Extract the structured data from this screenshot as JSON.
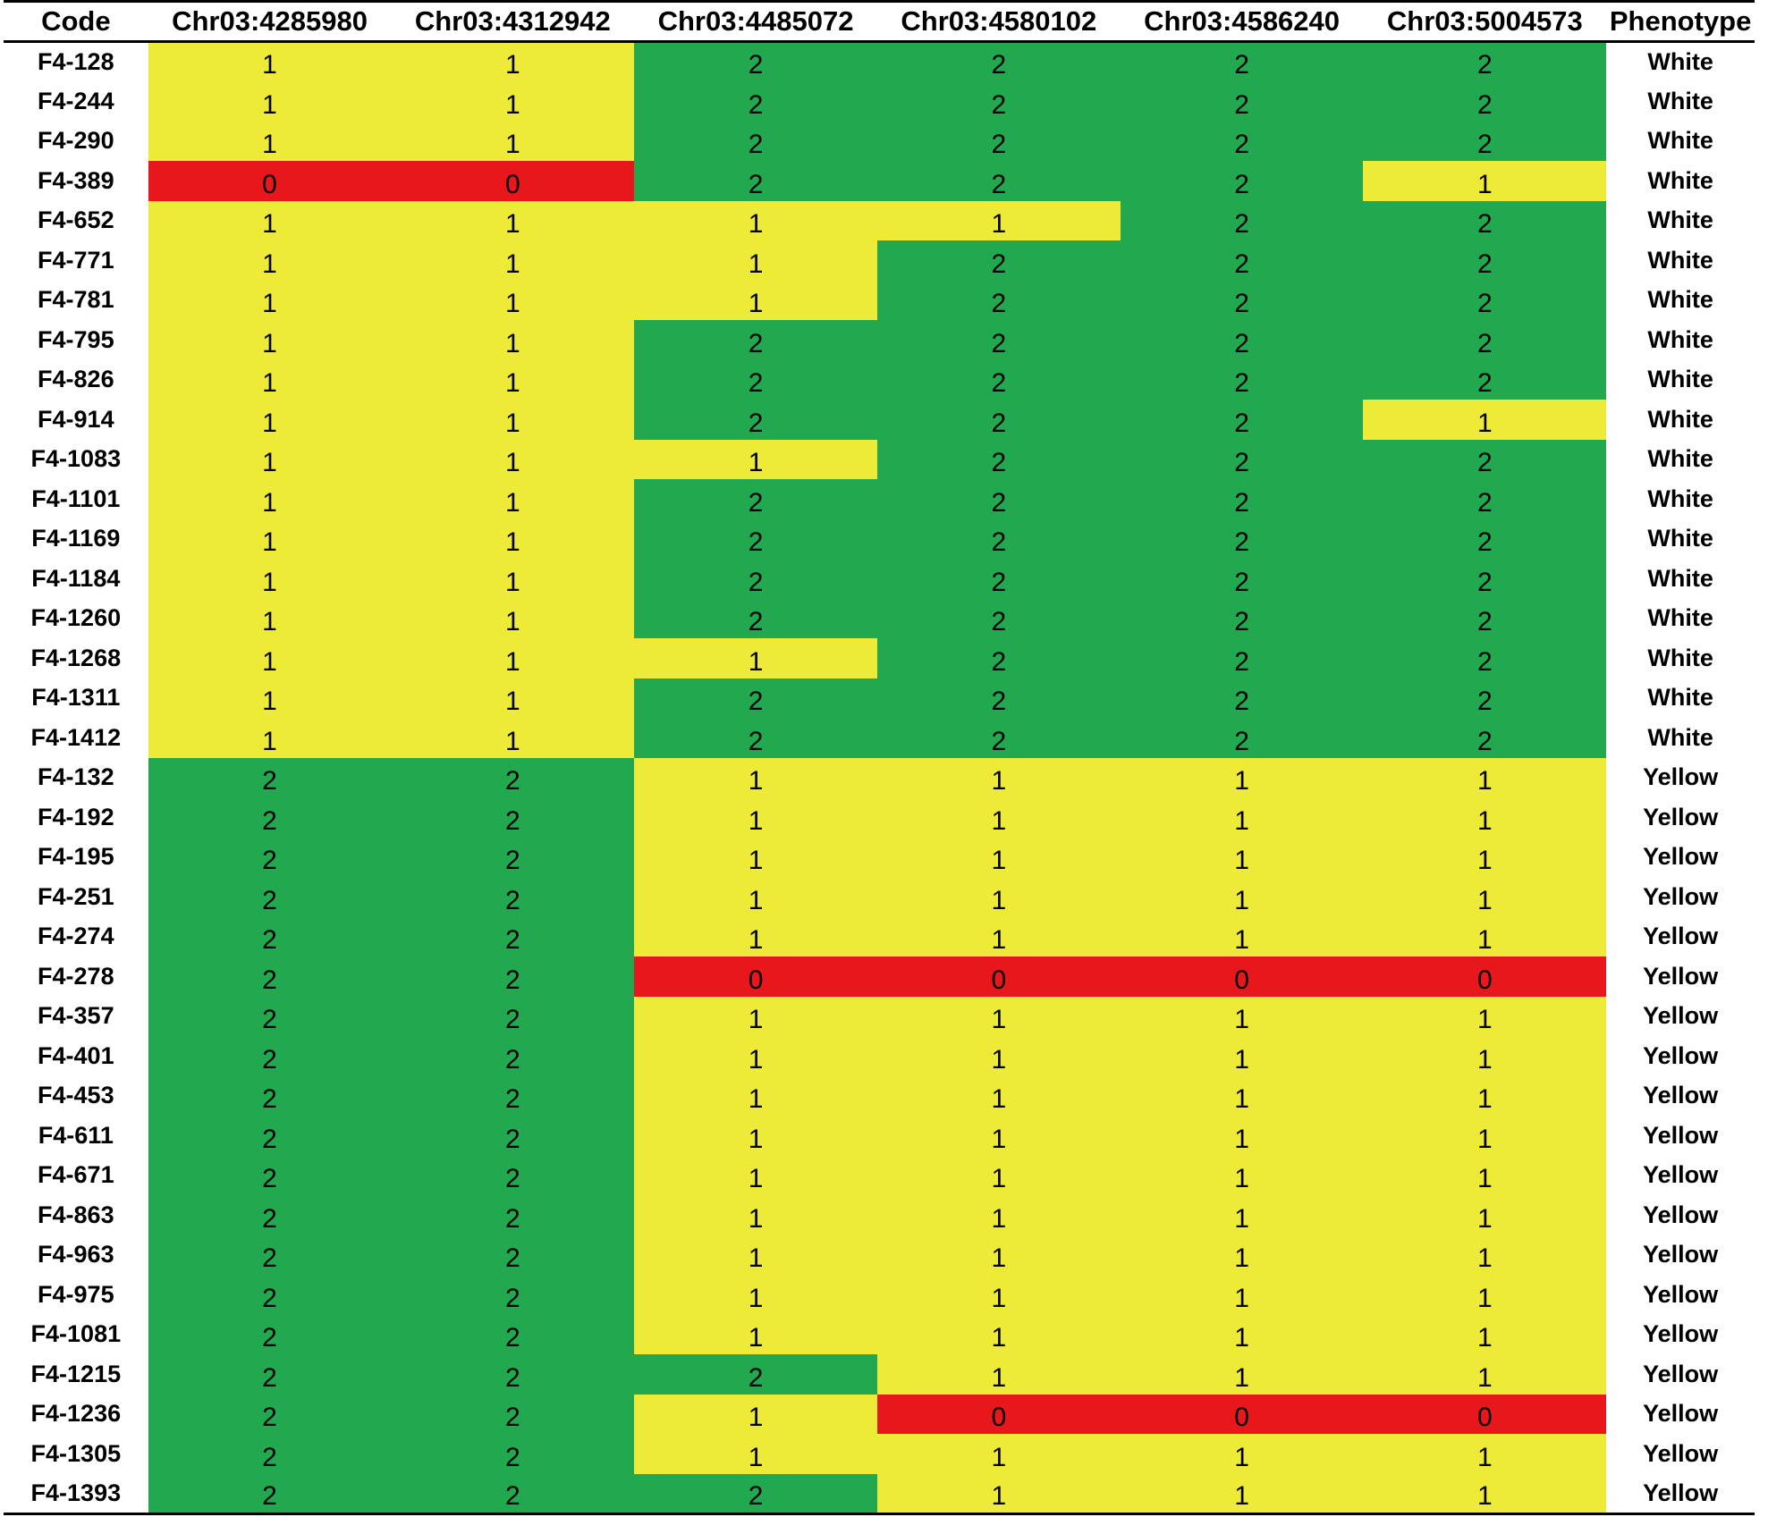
{
  "palette": {
    "0": "#e8171b",
    "1": "#eeea38",
    "2": "#22a84f"
  },
  "headers": [
    "Code",
    "Chr03:4285980",
    "Chr03:4312942",
    "Chr03:4485072",
    "Chr03:4580102",
    "Chr03:4586240",
    "Chr03:5004573",
    "Phenotype"
  ],
  "rows": [
    {
      "code": "F4-128",
      "genotypes": [
        "1",
        "1",
        "2",
        "2",
        "2",
        "2"
      ],
      "phenotype": "White"
    },
    {
      "code": "F4-244",
      "genotypes": [
        "1",
        "1",
        "2",
        "2",
        "2",
        "2"
      ],
      "phenotype": "White"
    },
    {
      "code": "F4-290",
      "genotypes": [
        "1",
        "1",
        "2",
        "2",
        "2",
        "2"
      ],
      "phenotype": "White"
    },
    {
      "code": "F4-389",
      "genotypes": [
        "0",
        "0",
        "2",
        "2",
        "2",
        "1"
      ],
      "phenotype": "White"
    },
    {
      "code": "F4-652",
      "genotypes": [
        "1",
        "1",
        "1",
        "1",
        "2",
        "2"
      ],
      "phenotype": "White"
    },
    {
      "code": "F4-771",
      "genotypes": [
        "1",
        "1",
        "1",
        "2",
        "2",
        "2"
      ],
      "phenotype": "White"
    },
    {
      "code": "F4-781",
      "genotypes": [
        "1",
        "1",
        "1",
        "2",
        "2",
        "2"
      ],
      "phenotype": "White"
    },
    {
      "code": "F4-795",
      "genotypes": [
        "1",
        "1",
        "2",
        "2",
        "2",
        "2"
      ],
      "phenotype": "White"
    },
    {
      "code": "F4-826",
      "genotypes": [
        "1",
        "1",
        "2",
        "2",
        "2",
        "2"
      ],
      "phenotype": "White"
    },
    {
      "code": "F4-914",
      "genotypes": [
        "1",
        "1",
        "2",
        "2",
        "2",
        "1"
      ],
      "phenotype": "White"
    },
    {
      "code": "F4-1083",
      "genotypes": [
        "1",
        "1",
        "1",
        "2",
        "2",
        "2"
      ],
      "phenotype": "White"
    },
    {
      "code": "F4-1101",
      "genotypes": [
        "1",
        "1",
        "2",
        "2",
        "2",
        "2"
      ],
      "phenotype": "White"
    },
    {
      "code": "F4-1169",
      "genotypes": [
        "1",
        "1",
        "2",
        "2",
        "2",
        "2"
      ],
      "phenotype": "White"
    },
    {
      "code": "F4-1184",
      "genotypes": [
        "1",
        "1",
        "2",
        "2",
        "2",
        "2"
      ],
      "phenotype": "White"
    },
    {
      "code": "F4-1260",
      "genotypes": [
        "1",
        "1",
        "2",
        "2",
        "2",
        "2"
      ],
      "phenotype": "White"
    },
    {
      "code": "F4-1268",
      "genotypes": [
        "1",
        "1",
        "1",
        "2",
        "2",
        "2"
      ],
      "phenotype": "White"
    },
    {
      "code": "F4-1311",
      "genotypes": [
        "1",
        "1",
        "2",
        "2",
        "2",
        "2"
      ],
      "phenotype": "White"
    },
    {
      "code": "F4-1412",
      "genotypes": [
        "1",
        "1",
        "2",
        "2",
        "2",
        "2"
      ],
      "phenotype": "White"
    },
    {
      "code": "F4-132",
      "genotypes": [
        "2",
        "2",
        "1",
        "1",
        "1",
        "1"
      ],
      "phenotype": "Yellow"
    },
    {
      "code": "F4-192",
      "genotypes": [
        "2",
        "2",
        "1",
        "1",
        "1",
        "1"
      ],
      "phenotype": "Yellow"
    },
    {
      "code": "F4-195",
      "genotypes": [
        "2",
        "2",
        "1",
        "1",
        "1",
        "1"
      ],
      "phenotype": "Yellow"
    },
    {
      "code": "F4-251",
      "genotypes": [
        "2",
        "2",
        "1",
        "1",
        "1",
        "1"
      ],
      "phenotype": "Yellow"
    },
    {
      "code": "F4-274",
      "genotypes": [
        "2",
        "2",
        "1",
        "1",
        "1",
        "1"
      ],
      "phenotype": "Yellow"
    },
    {
      "code": "F4-278",
      "genotypes": [
        "2",
        "2",
        "0",
        "0",
        "0",
        "0"
      ],
      "phenotype": "Yellow"
    },
    {
      "code": "F4-357",
      "genotypes": [
        "2",
        "2",
        "1",
        "1",
        "1",
        "1"
      ],
      "phenotype": "Yellow"
    },
    {
      "code": "F4-401",
      "genotypes": [
        "2",
        "2",
        "1",
        "1",
        "1",
        "1"
      ],
      "phenotype": "Yellow"
    },
    {
      "code": "F4-453",
      "genotypes": [
        "2",
        "2",
        "1",
        "1",
        "1",
        "1"
      ],
      "phenotype": "Yellow"
    },
    {
      "code": "F4-611",
      "genotypes": [
        "2",
        "2",
        "1",
        "1",
        "1",
        "1"
      ],
      "phenotype": "Yellow"
    },
    {
      "code": "F4-671",
      "genotypes": [
        "2",
        "2",
        "1",
        "1",
        "1",
        "1"
      ],
      "phenotype": "Yellow"
    },
    {
      "code": "F4-863",
      "genotypes": [
        "2",
        "2",
        "1",
        "1",
        "1",
        "1"
      ],
      "phenotype": "Yellow"
    },
    {
      "code": "F4-963",
      "genotypes": [
        "2",
        "2",
        "1",
        "1",
        "1",
        "1"
      ],
      "phenotype": "Yellow"
    },
    {
      "code": "F4-975",
      "genotypes": [
        "2",
        "2",
        "1",
        "1",
        "1",
        "1"
      ],
      "phenotype": "Yellow"
    },
    {
      "code": "F4-1081",
      "genotypes": [
        "2",
        "2",
        "1",
        "1",
        "1",
        "1"
      ],
      "phenotype": "Yellow"
    },
    {
      "code": "F4-1215",
      "genotypes": [
        "2",
        "2",
        "2",
        "1",
        "1",
        "1"
      ],
      "phenotype": "Yellow"
    },
    {
      "code": "F4-1236",
      "genotypes": [
        "2",
        "2",
        "1",
        "0",
        "0",
        "0"
      ],
      "phenotype": "Yellow"
    },
    {
      "code": "F4-1305",
      "genotypes": [
        "2",
        "2",
        "1",
        "1",
        "1",
        "1"
      ],
      "phenotype": "Yellow"
    },
    {
      "code": "F4-1393",
      "genotypes": [
        "2",
        "2",
        "2",
        "1",
        "1",
        "1"
      ],
      "phenotype": "Yellow"
    }
  ]
}
